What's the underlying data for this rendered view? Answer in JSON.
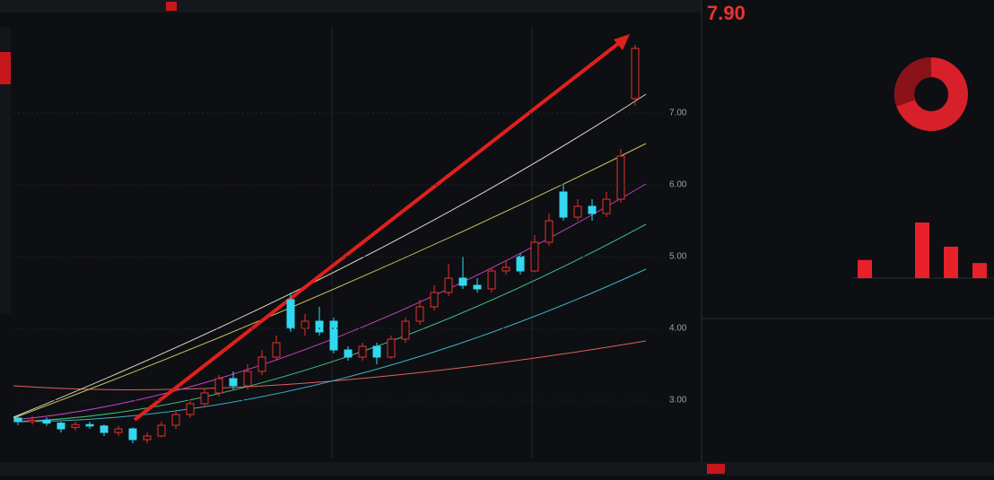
{
  "price_chart": {
    "ylim": [
      2.1,
      8.1
    ],
    "yticks": [
      {
        "value": 7,
        "label": "7.00"
      },
      {
        "value": 6,
        "label": "6.00"
      },
      {
        "value": 5,
        "label": "5.00"
      },
      {
        "value": 4,
        "label": "4.00"
      },
      {
        "value": 3,
        "label": "3.00"
      }
    ],
    "candles": [
      [
        2.75,
        2.7,
        2.8,
        2.65
      ],
      [
        2.7,
        2.72,
        2.78,
        2.66
      ],
      [
        2.72,
        2.68,
        2.76,
        2.64
      ],
      [
        2.68,
        2.6,
        2.7,
        2.55
      ],
      [
        2.62,
        2.66,
        2.7,
        2.58
      ],
      [
        2.66,
        2.64,
        2.7,
        2.6
      ],
      [
        2.64,
        2.55,
        2.66,
        2.5
      ],
      [
        2.55,
        2.6,
        2.64,
        2.5
      ],
      [
        2.6,
        2.45,
        2.62,
        2.4
      ],
      [
        2.45,
        2.5,
        2.55,
        2.4
      ],
      [
        2.5,
        2.65,
        2.7,
        2.48
      ],
      [
        2.65,
        2.8,
        2.85,
        2.6
      ],
      [
        2.8,
        2.95,
        3.0,
        2.75
      ],
      [
        2.95,
        3.1,
        3.15,
        2.9
      ],
      [
        3.1,
        3.3,
        3.35,
        3.05
      ],
      [
        3.3,
        3.2,
        3.4,
        3.15
      ],
      [
        3.2,
        3.4,
        3.5,
        3.15
      ],
      [
        3.4,
        3.6,
        3.7,
        3.35
      ],
      [
        3.6,
        3.8,
        3.9,
        3.55
      ],
      [
        4.4,
        4.0,
        4.5,
        3.95
      ],
      [
        4.0,
        4.1,
        4.2,
        3.9
      ],
      [
        4.1,
        3.95,
        4.3,
        3.9
      ],
      [
        4.1,
        3.7,
        4.15,
        3.65
      ],
      [
        3.7,
        3.6,
        3.75,
        3.55
      ],
      [
        3.6,
        3.75,
        3.8,
        3.55
      ],
      [
        3.75,
        3.6,
        3.8,
        3.5
      ],
      [
        3.6,
        3.85,
        3.9,
        3.58
      ],
      [
        3.85,
        4.1,
        4.15,
        3.8
      ],
      [
        4.1,
        4.3,
        4.4,
        4.05
      ],
      [
        4.3,
        4.5,
        4.6,
        4.25
      ],
      [
        4.5,
        4.7,
        4.9,
        4.45
      ],
      [
        4.7,
        4.6,
        5.0,
        4.55
      ],
      [
        4.6,
        4.55,
        4.7,
        4.5
      ],
      [
        4.55,
        4.8,
        4.85,
        4.5
      ],
      [
        4.8,
        4.85,
        4.95,
        4.75
      ],
      [
        5.0,
        4.8,
        5.05,
        4.75
      ],
      [
        4.8,
        5.2,
        5.3,
        4.78
      ],
      [
        5.2,
        5.5,
        5.6,
        5.15
      ],
      [
        5.9,
        5.55,
        6.0,
        5.5
      ],
      [
        5.55,
        5.7,
        5.8,
        5.5
      ],
      [
        5.7,
        5.6,
        5.8,
        5.5
      ],
      [
        5.6,
        5.8,
        5.9,
        5.55
      ],
      [
        5.8,
        6.4,
        6.5,
        5.75
      ],
      [
        7.2,
        7.9,
        7.95,
        7.1
      ]
    ]
  },
  "quote": {
    "price": "7.90"
  },
  "flow_bars": [
    30,
    0,
    92,
    52,
    25
  ]
}
